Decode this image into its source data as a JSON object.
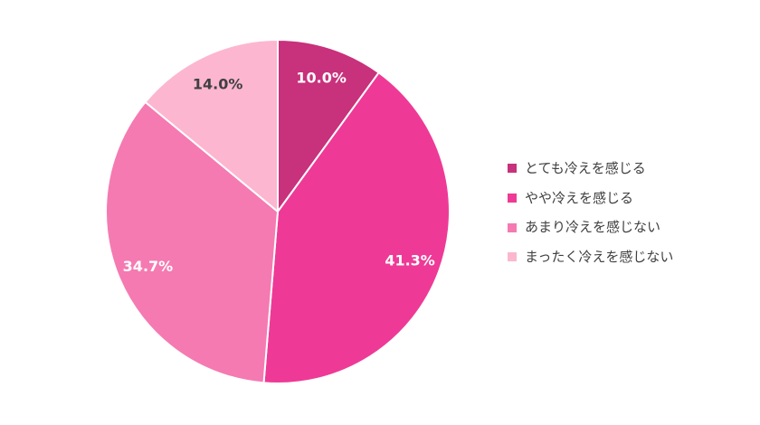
{
  "chart_data": {
    "type": "pie",
    "categories": [
      "とても冷えを感じる",
      "やや冷えを感じる",
      "あまり冷えを感じない",
      "まったく冷えを感じない"
    ],
    "values": [
      10.0,
      41.3,
      34.7,
      14.0
    ],
    "value_suffix": "%",
    "start": "top",
    "direction": "clockwise",
    "colors": [
      "#C8317B",
      "#EE3A96",
      "#F57AB1",
      "#FCB6D0"
    ],
    "label_colors": [
      "#FFFFFF",
      "#FFFFFF",
      "#FFFFFF",
      "#404040"
    ],
    "legend_placement": "right"
  }
}
